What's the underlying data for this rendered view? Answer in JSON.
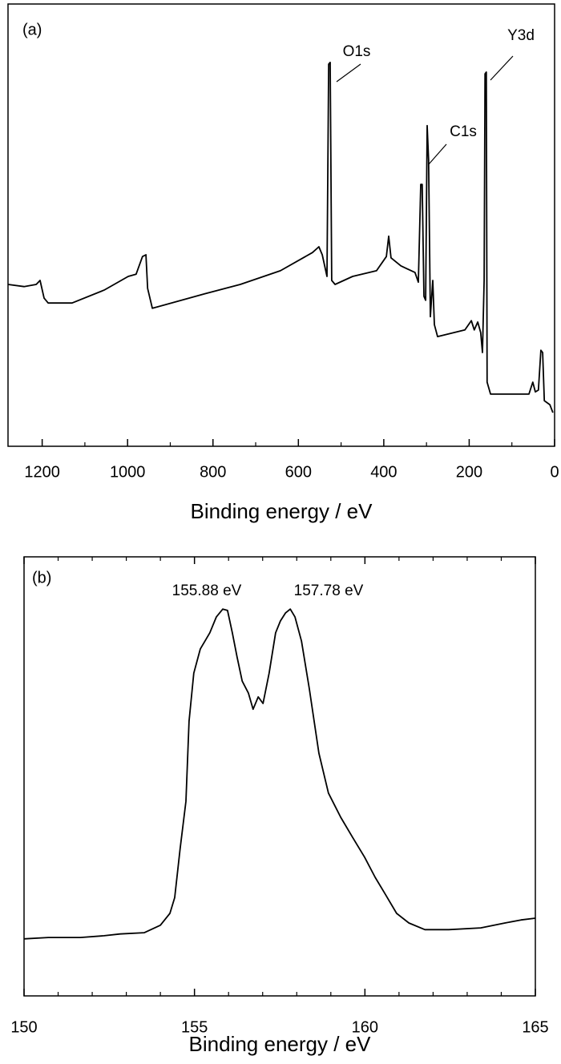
{
  "chart_data": [
    {
      "type": "line",
      "panel_label": "(a)",
      "x_label": "Binding energy / eV",
      "annotations": [
        "O1s",
        "C1s",
        "Y3d"
      ],
      "color": "#000000",
      "xlim": [
        1280,
        0
      ],
      "ylim": [
        0,
        100
      ],
      "xticks": [
        1200,
        1000,
        800,
        600,
        400,
        200,
        0
      ],
      "xminorticks": [
        1100,
        900,
        700,
        500,
        300,
        100
      ],
      "x": [
        1280,
        1242.5,
        1214,
        1205,
        1195.5,
        1186,
        1130,
        1055,
        998.5,
        980,
        965,
        957,
        953,
        942,
        830,
        736,
        642,
        567,
        552,
        544,
        533,
        529,
        525.5,
        522,
        514,
        473,
        417,
        394,
        388.5,
        383,
        360,
        327,
        319,
        313.5,
        310,
        306,
        302,
        298.4,
        295,
        291,
        285.3,
        281.5,
        274,
        210,
        195,
        188,
        180,
        173,
        169,
        165,
        163,
        160,
        158,
        150,
        60,
        51,
        45,
        38,
        32,
        28,
        24,
        11,
        4
      ],
      "values": [
        36.6,
        36.1,
        36.6,
        37.5,
        33.5,
        32.4,
        32.4,
        35.3,
        38.4,
        38.9,
        42.9,
        43.3,
        35.7,
        31.2,
        34.2,
        36.6,
        39.7,
        43.8,
        45.1,
        43.3,
        38.4,
        86.4,
        86.8,
        37.5,
        36.6,
        38.4,
        39.7,
        42.9,
        47.5,
        42.6,
        40.8,
        39.3,
        37.1,
        59.2,
        59.2,
        33.9,
        33.0,
        72.5,
        64.7,
        29.3,
        37.5,
        27.5,
        24.8,
        26.3,
        28.4,
        26.3,
        28.1,
        25.7,
        21.2,
        37.5,
        84.2,
        84.6,
        14.5,
        11.8,
        11.8,
        14.5,
        12.3,
        12.7,
        21.7,
        21.2,
        10.3,
        9.4,
        7.6
      ]
    },
    {
      "type": "line",
      "panel_label": "(b)",
      "x_label": "Binding energy / eV",
      "annotations": [
        "155.88 eV",
        "157.78 eV"
      ],
      "color": "#000000",
      "xlim": [
        150,
        165
      ],
      "ylim": [
        0,
        100
      ],
      "xticks": [
        150,
        155,
        160,
        165
      ],
      "xminorticks": [
        151,
        152,
        153,
        154,
        156,
        157,
        158,
        159,
        161,
        162,
        163,
        164
      ],
      "x": [
        150,
        150.71,
        151.65,
        152.35,
        152.82,
        153.53,
        154,
        154.28,
        154.42,
        154.58,
        154.75,
        154.84,
        154.98,
        155.17,
        155.45,
        155.64,
        155.83,
        155.97,
        156.11,
        156.25,
        156.4,
        156.58,
        156.72,
        156.87,
        157.01,
        157.19,
        157.38,
        157.52,
        157.67,
        157.81,
        157.95,
        158.14,
        158.37,
        158.65,
        158.93,
        159.29,
        159.64,
        159.99,
        160.3,
        160.58,
        160.93,
        161.29,
        161.76,
        162.46,
        163.4,
        164.11,
        164.58,
        165
      ],
      "values": [
        13,
        13.3,
        13.3,
        13.7,
        14.1,
        14.4,
        16.1,
        18.8,
        22.4,
        33.6,
        44.3,
        62.6,
        73.5,
        79,
        82.7,
        86.3,
        88.1,
        87.8,
        82.7,
        77.2,
        71.7,
        69,
        65.3,
        68.1,
        66.6,
        73.5,
        82.7,
        85.4,
        87.2,
        88.1,
        86.3,
        80.8,
        69.9,
        55.3,
        46.2,
        40.7,
        36.1,
        31.6,
        27,
        23.4,
        18.8,
        16.6,
        15.1,
        15.1,
        15.5,
        16.6,
        17.3,
        17.7
      ]
    }
  ]
}
